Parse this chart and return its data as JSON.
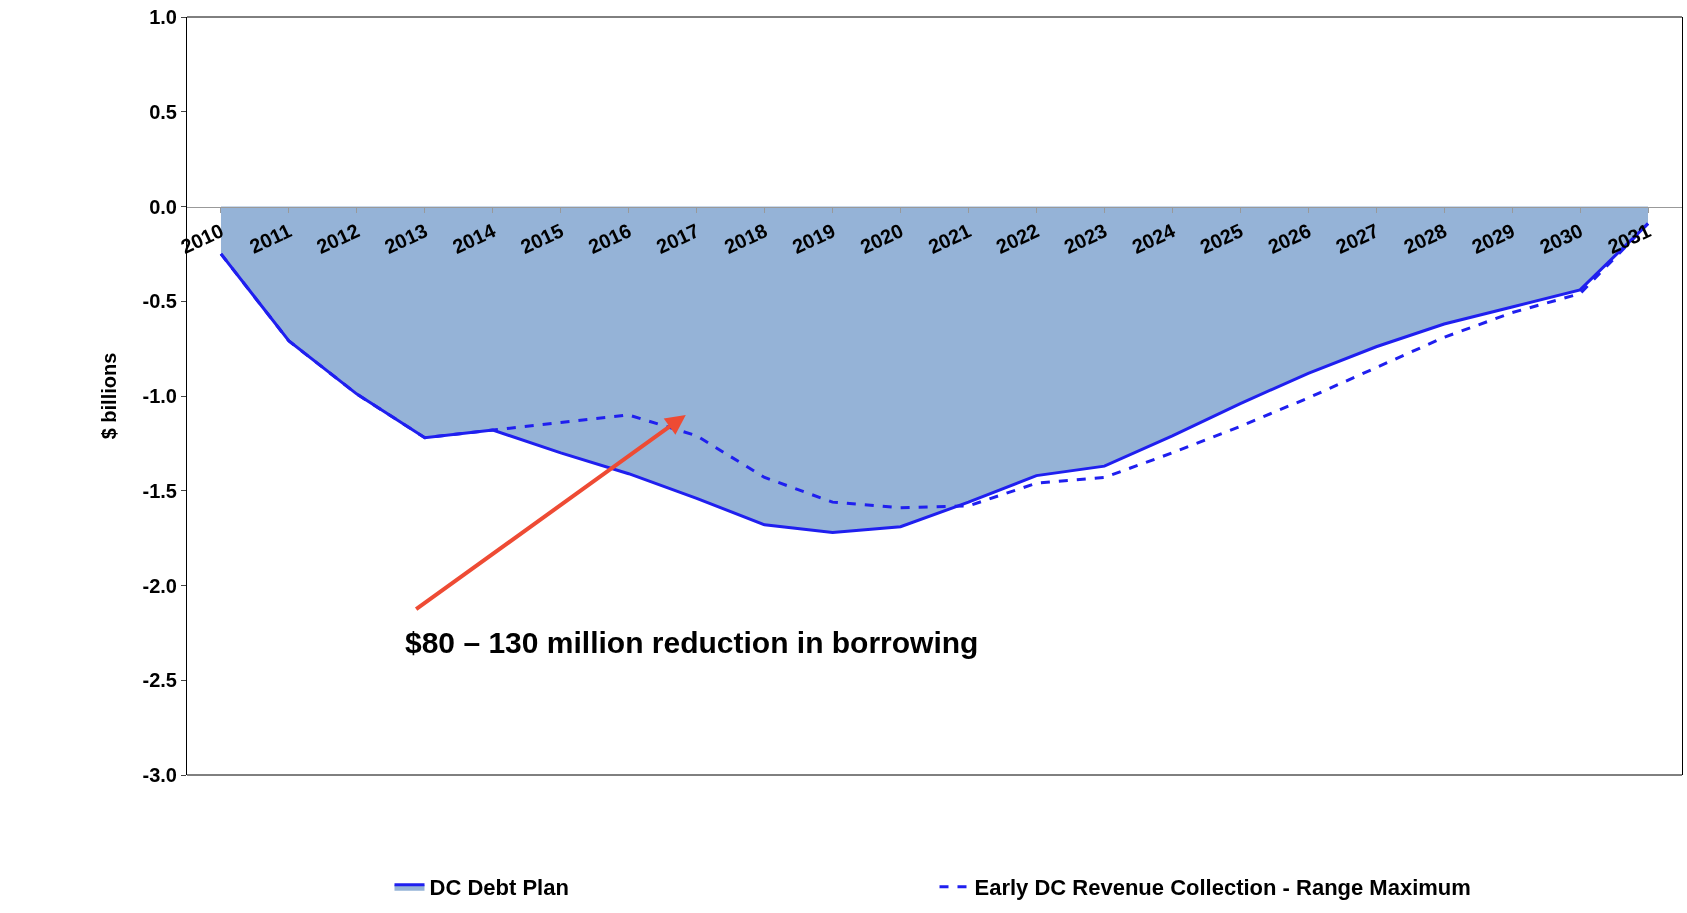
{
  "chart_data": {
    "type": "area",
    "ylabel": "$ billions",
    "categories": [
      "2010",
      "2011",
      "2012",
      "2013",
      "2014",
      "2015",
      "2016",
      "2017",
      "2018",
      "2019",
      "2020",
      "2021",
      "2022",
      "2023",
      "2024",
      "2025",
      "2026",
      "2027",
      "2028",
      "2029",
      "2030",
      "2031"
    ],
    "series": [
      {
        "name": "DC Debt Plan",
        "color": "#95b3d7",
        "values": [
          -0.25,
          -0.71,
          -0.99,
          -1.22,
          -1.18,
          -1.3,
          -1.41,
          -1.54,
          -1.68,
          -1.72,
          -1.69,
          -1.56,
          -1.42,
          -1.37,
          -1.21,
          -1.04,
          -0.88,
          -0.74,
          -0.62,
          -0.53,
          -0.44,
          -0.09
        ]
      },
      {
        "name": "Early DC Revenue Collection - Range Maximum",
        "type": "line",
        "line_style": "dashed",
        "color": "#1f1fef",
        "values": [
          -0.25,
          -0.71,
          -0.99,
          -1.22,
          -1.18,
          -1.14,
          -1.1,
          -1.21,
          -1.43,
          -1.56,
          -1.59,
          -1.58,
          -1.46,
          -1.43,
          -1.3,
          -1.16,
          -1.01,
          -0.85,
          -0.69,
          -0.56,
          -0.46,
          -0.09
        ]
      }
    ],
    "ylim": [
      -3.0,
      1.0
    ],
    "yticks": [
      {
        "value": -3,
        "label": "-3.0"
      },
      {
        "value": -2.5,
        "label": "-2.5"
      },
      {
        "value": -2,
        "label": "-2.0"
      },
      {
        "value": -1.5,
        "label": "-1.5"
      },
      {
        "value": -1,
        "label": "-1.0"
      },
      {
        "value": -0.5,
        "label": "-0.5"
      },
      {
        "value": 0,
        "label": "0.0"
      },
      {
        "value": 0.5,
        "label": "0.5"
      },
      {
        "value": 1,
        "label": "1.0"
      }
    ],
    "annotations": [
      "$80 – 130 million reduction in borrowing"
    ],
    "legend": "bottom"
  }
}
